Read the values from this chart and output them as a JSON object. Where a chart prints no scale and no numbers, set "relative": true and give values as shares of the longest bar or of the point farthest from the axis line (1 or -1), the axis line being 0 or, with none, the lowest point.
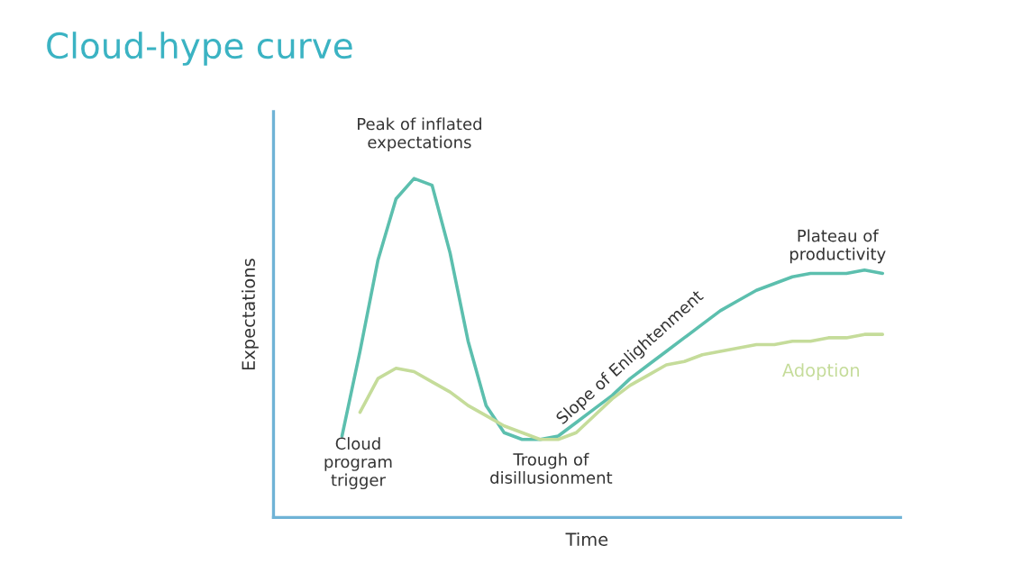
{
  "chart_data": {
    "type": "line",
    "title": "Cloud-hype curve",
    "xlabel": "Time",
    "ylabel": "Expectations",
    "relative": true,
    "categories": [
      null,
      null,
      null,
      null,
      null,
      null,
      null,
      null,
      null,
      null,
      null,
      null,
      null,
      null,
      null,
      null,
      null,
      null,
      null,
      null,
      null,
      null,
      null,
      null,
      null,
      null,
      null,
      null,
      null,
      null,
      null
    ],
    "series": [
      {
        "color": "#5cbfae",
        "values": [
          0.24,
          0.49,
          0.76,
          0.94,
          1.0,
          0.98,
          0.78,
          0.52,
          0.33,
          0.25,
          0.23,
          0.23,
          0.24,
          0.28,
          0.32,
          0.36,
          0.41,
          0.45,
          0.49,
          0.53,
          0.57,
          0.61,
          0.64,
          0.67,
          0.69,
          0.71,
          0.72,
          0.72,
          0.72,
          0.73,
          0.72
        ]
      },
      {
        "name": "Adoption",
        "color": "#c5dc9a",
        "values": [
          null,
          0.31,
          0.41,
          0.44,
          0.43,
          0.4,
          0.37,
          0.33,
          0.3,
          0.27,
          0.25,
          0.23,
          0.23,
          0.25,
          0.3,
          0.35,
          0.39,
          0.42,
          0.45,
          0.46,
          0.48,
          0.49,
          0.5,
          0.51,
          0.51,
          0.52,
          0.52,
          0.53,
          0.53,
          0.54,
          0.54
        ]
      }
    ],
    "annotations": [
      "Peak of inflated\nexpectations",
      "Cloud\nprogram\ntrigger",
      "Trough of\ndisillusionment",
      "Slope of Enlightenment",
      "Plateau of\nproductivity"
    ],
    "legend": false,
    "marker": "none",
    "line_style": "solid"
  }
}
